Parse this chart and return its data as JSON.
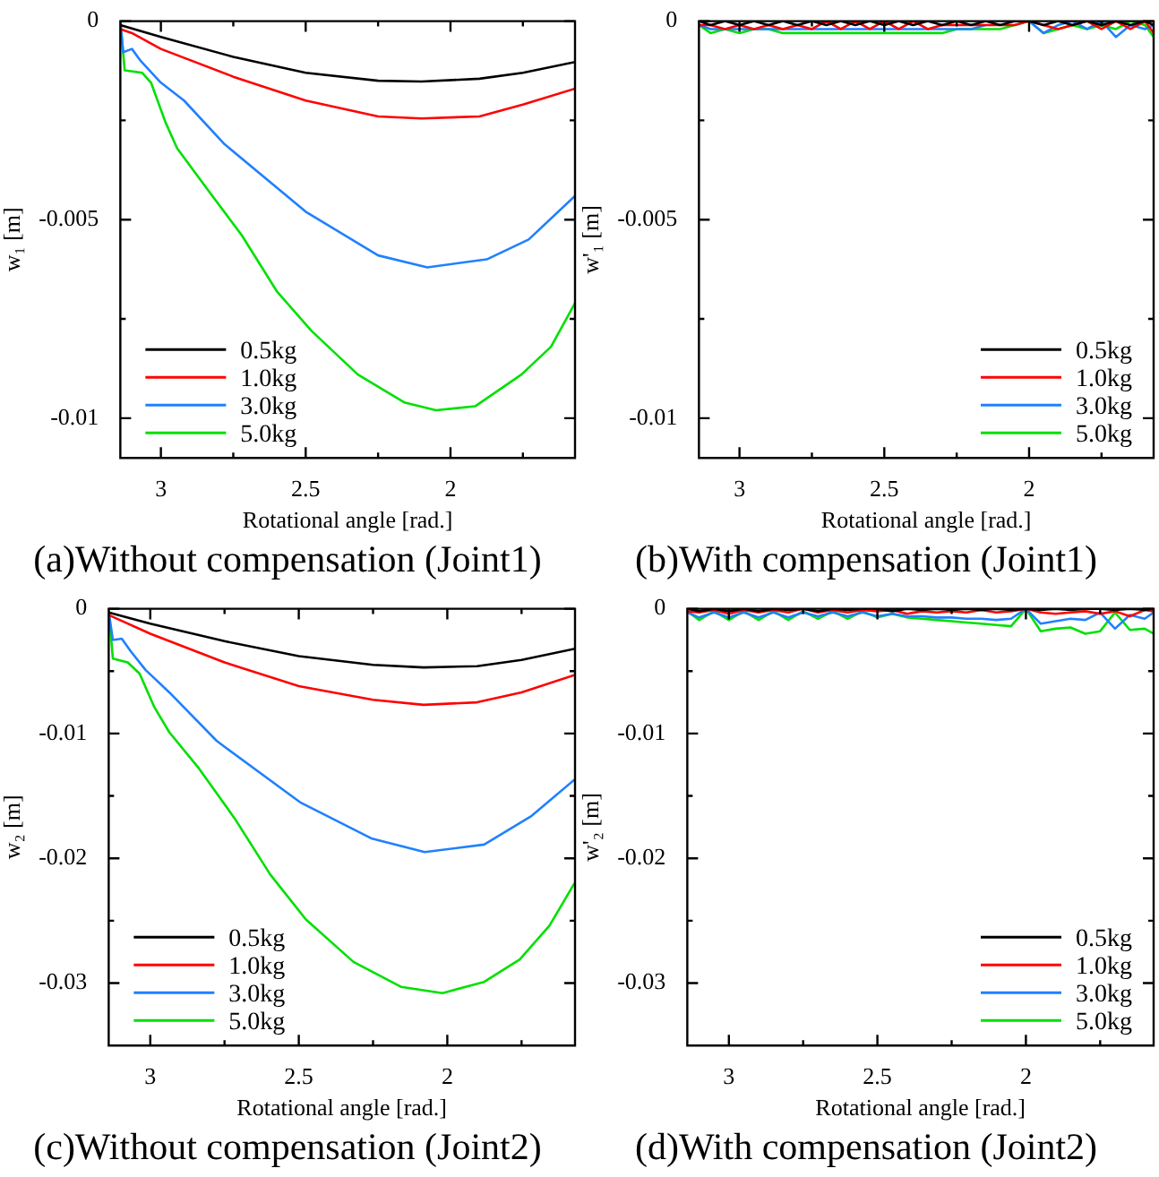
{
  "chart_data": [
    {
      "type": "line",
      "title": "(a)Without compensation (Joint1)",
      "xlabel": "Rotational angle [rad.]",
      "ylabel": "w₁ [m]",
      "xlim": [
        3.14,
        1.57
      ],
      "ylim": [
        -0.011,
        0
      ],
      "xticks": [
        3,
        {
          "value": 2.75,
          "label": null
        },
        2.5,
        {
          "value": 2.25,
          "label": null
        },
        2,
        {
          "value": 1.75,
          "label": null
        }
      ],
      "yticks": [
        0,
        {
          "value": -0.0025,
          "label": null
        },
        -0.005,
        {
          "value": -0.0075,
          "label": null
        },
        -0.01
      ],
      "grid": false,
      "legend": "bottom left",
      "marker": "none",
      "line_style": "solid",
      "series": [
        {
          "name": "0.5kg",
          "color": "#000000",
          "x": [
            3.14,
            3.0,
            2.75,
            2.5,
            2.25,
            2.1,
            1.9,
            1.75,
            1.57
          ],
          "values": [
            -0.0001,
            -0.0004,
            -0.0009,
            -0.0013,
            -0.0015,
            -0.00152,
            -0.00145,
            -0.0013,
            -0.00103
          ]
        },
        {
          "name": "1.0kg",
          "color": "#ff0000",
          "x": [
            3.14,
            3.1,
            3.0,
            2.75,
            2.5,
            2.25,
            2.1,
            1.9,
            1.75,
            1.57
          ],
          "values": [
            -0.0002,
            -0.0003,
            -0.0007,
            -0.0014,
            -0.002,
            -0.0024,
            -0.00245,
            -0.0024,
            -0.0021,
            -0.0017
          ]
        },
        {
          "name": "3.0kg",
          "color": "#2080ff",
          "x": [
            3.14,
            3.13,
            3.1,
            3.07,
            3.0,
            2.92,
            2.78,
            2.5,
            2.25,
            2.08,
            1.875,
            1.73,
            1.57
          ],
          "values": [
            0,
            -0.00078,
            -0.0007,
            -0.001,
            -0.00155,
            -0.002,
            -0.0031,
            -0.0048,
            -0.0059,
            -0.0062,
            -0.006,
            -0.0055,
            -0.0044
          ]
        },
        {
          "name": "5.0kg",
          "color": "#00e000",
          "x": [
            3.14,
            3.125,
            3.065,
            3.034,
            2.984,
            2.944,
            2.843,
            2.72,
            2.6,
            2.48,
            2.32,
            2.16,
            2.05,
            1.915,
            1.755,
            1.653,
            1.57
          ],
          "values": [
            0,
            -0.00124,
            -0.0013,
            -0.00155,
            -0.00255,
            -0.0032,
            -0.0042,
            -0.0054,
            -0.0068,
            -0.0078,
            -0.0089,
            -0.0096,
            -0.0098,
            -0.0097,
            -0.0089,
            -0.0082,
            -0.0071
          ]
        }
      ]
    },
    {
      "type": "line",
      "title": "(b)With compensation (Joint1)",
      "xlabel": "Rotational angle [rad.]",
      "ylabel": "w'₁ [m]",
      "xlim": [
        3.14,
        1.57
      ],
      "ylim": [
        -0.011,
        0
      ],
      "xticks": [
        3,
        {
          "value": 2.75,
          "label": null
        },
        2.5,
        {
          "value": 2.25,
          "label": null
        },
        2,
        {
          "value": 1.75,
          "label": null
        }
      ],
      "yticks": [
        0,
        {
          "value": -0.0025,
          "label": null
        },
        -0.005,
        {
          "value": -0.0075,
          "label": null
        },
        -0.01
      ],
      "grid": false,
      "legend": "bottom right",
      "marker": "none",
      "line_style": "solid",
      "x": [
        3.14,
        3.1,
        3.05,
        3.0,
        2.95,
        2.9,
        2.85,
        2.8,
        2.75,
        2.7,
        2.65,
        2.6,
        2.55,
        2.5,
        2.45,
        2.4,
        2.35,
        2.3,
        2.25,
        2.2,
        2.15,
        2.1,
        2.05,
        2.0,
        1.95,
        1.9,
        1.85,
        1.8,
        1.75,
        1.7,
        1.65,
        1.6,
        1.57
      ],
      "series": [
        {
          "name": "0.5kg",
          "color": "#000000",
          "values": [
            0,
            -0.0001,
            0,
            -0.0001,
            0,
            -0.0001,
            0,
            -0.0001,
            0,
            -0.0001,
            0,
            -0.0001,
            0,
            -0.0001,
            0,
            -0.0001,
            0,
            -0.0001,
            0,
            -0.0001,
            0,
            -0.0001,
            0,
            0,
            -0.0001,
            0,
            -0.0001,
            0,
            -0.0001,
            0,
            -0.0001,
            0,
            -0.0001
          ]
        },
        {
          "name": "1.0kg",
          "color": "#ff0000",
          "values": [
            -0.0001,
            -0.0001,
            -0.0002,
            -0.0001,
            -0.0002,
            -0.0001,
            -0.0002,
            -0.0001,
            -0.0002,
            0,
            -0.0002,
            0,
            -0.0002,
            0,
            -0.0002,
            0,
            -0.0002,
            -0.0001,
            -0.0001,
            -0.0001,
            -0.0001,
            -0.0001,
            -0.0001,
            0,
            -0.0001,
            -0.0002,
            -0.0001,
            0,
            -0.0002,
            0,
            -0.0002,
            0,
            -0.0003
          ]
        },
        {
          "name": "3.0kg",
          "color": "#2080ff",
          "values": [
            -0.0001,
            -0.0002,
            -0.0002,
            -0.0002,
            -0.0002,
            -0.0002,
            -0.0002,
            -0.0002,
            -0.0002,
            -0.0002,
            -0.0002,
            -0.0002,
            -0.0002,
            -0.0002,
            -0.0002,
            -0.0002,
            -0.0002,
            -0.0002,
            -0.0002,
            -0.0002,
            -0.0001,
            null,
            null,
            0,
            -0.0003,
            -0.0001,
            0,
            -0.0002,
            0,
            -0.0004,
            -0.0001,
            -0.0002,
            -0.0001
          ]
        },
        {
          "name": "5.0kg",
          "color": "#00e000",
          "values": [
            -0.0001,
            -0.0003,
            -0.0002,
            -0.0003,
            -0.0002,
            -0.0002,
            -0.0003,
            -0.0003,
            -0.0003,
            -0.0003,
            -0.0003,
            -0.0003,
            -0.0003,
            -0.0003,
            -0.0003,
            -0.0003,
            -0.0003,
            -0.0003,
            -0.0002,
            -0.0002,
            -0.0002,
            -0.0002,
            -0.0001,
            0,
            -0.0003,
            -0.0002,
            -0.0001,
            -0.0002,
            -0.0001,
            -0.0002,
            0,
            -0.0001,
            -0.0004
          ]
        }
      ]
    },
    {
      "type": "line",
      "title": "(c)Without compensation (Joint2)",
      "xlabel": "Rotational angle [rad.]",
      "ylabel": "w₂ [m]",
      "xlim": [
        3.14,
        1.57
      ],
      "ylim": [
        -0.035,
        0
      ],
      "xticks": [
        3,
        {
          "value": 2.75,
          "label": null
        },
        2.5,
        {
          "value": 2.25,
          "label": null
        },
        2,
        {
          "value": 1.75,
          "label": null
        }
      ],
      "yticks": [
        0,
        {
          "value": -0.005,
          "label": null
        },
        -0.01,
        {
          "value": -0.015,
          "label": null
        },
        -0.02,
        {
          "value": -0.025,
          "label": null
        },
        -0.03
      ],
      "grid": false,
      "legend": "bottom left",
      "marker": "none",
      "line_style": "solid",
      "series": [
        {
          "name": "0.5kg",
          "color": "#000000",
          "x": [
            3.14,
            3.0,
            2.75,
            2.5,
            2.25,
            2.08,
            1.9,
            1.75,
            1.57
          ],
          "values": [
            -0.0003,
            -0.0012,
            -0.0026,
            -0.0038,
            -0.0045,
            -0.0047,
            -0.0046,
            -0.0041,
            -0.0032
          ]
        },
        {
          "name": "1.0kg",
          "color": "#ff0000",
          "x": [
            3.14,
            3.0,
            2.75,
            2.5,
            2.25,
            2.08,
            1.9,
            1.75,
            1.57
          ],
          "values": [
            -0.0005,
            -0.002,
            -0.0043,
            -0.0062,
            -0.0073,
            -0.0077,
            -0.0075,
            -0.0067,
            -0.0053
          ]
        },
        {
          "name": "3.0kg",
          "color": "#2080ff",
          "x": [
            3.14,
            3.126,
            3.096,
            3.066,
            3.016,
            2.936,
            2.776,
            2.496,
            2.256,
            2.076,
            1.876,
            1.716,
            1.572
          ],
          "values": [
            -0.0002,
            -0.0025,
            -0.0024,
            -0.0034,
            -0.0049,
            -0.0067,
            -0.0106,
            -0.0155,
            -0.0184,
            -0.0195,
            -0.0189,
            -0.0166,
            -0.0137
          ]
        },
        {
          "name": "5.0kg",
          "color": "#00e000",
          "x": [
            3.14,
            3.126,
            3.076,
            3.036,
            2.986,
            2.936,
            2.836,
            2.716,
            2.596,
            2.476,
            2.316,
            2.156,
            2.016,
            1.876,
            1.756,
            1.656,
            1.572
          ],
          "values": [
            0,
            -0.004,
            -0.0043,
            -0.0052,
            -0.0079,
            -0.0099,
            -0.0128,
            -0.0168,
            -0.0213,
            -0.0249,
            -0.0283,
            -0.0303,
            -0.0308,
            -0.0299,
            -0.0281,
            -0.0254,
            -0.022
          ]
        }
      ]
    },
    {
      "type": "line",
      "title": "(d)With compensation (Joint2)",
      "xlabel": "Rotational angle [rad.]",
      "ylabel": "w'₂ [m]",
      "xlim": [
        3.14,
        1.57
      ],
      "ylim": [
        -0.035,
        0
      ],
      "xticks": [
        3,
        {
          "value": 2.75,
          "label": null
        },
        2.5,
        {
          "value": 2.25,
          "label": null
        },
        2,
        {
          "value": 1.75,
          "label": null
        }
      ],
      "yticks": [
        0,
        {
          "value": -0.005,
          "label": null
        },
        -0.01,
        {
          "value": -0.015,
          "label": null
        },
        -0.02,
        {
          "value": -0.025,
          "label": null
        },
        -0.03
      ],
      "grid": false,
      "legend": "bottom right",
      "marker": "none",
      "line_style": "solid",
      "x": [
        3.14,
        3.1,
        3.05,
        3.0,
        2.95,
        2.9,
        2.85,
        2.8,
        2.75,
        2.7,
        2.65,
        2.6,
        2.55,
        2.5,
        2.45,
        2.4,
        2.35,
        2.3,
        2.25,
        2.2,
        2.15,
        2.1,
        2.05,
        2.0,
        1.95,
        1.9,
        1.85,
        1.8,
        1.75,
        1.7,
        1.65,
        1.6,
        1.57
      ],
      "series": [
        {
          "name": "0.5kg",
          "color": "#000000",
          "values": [
            0,
            -0.0002,
            0,
            -0.0002,
            0,
            -0.0002,
            0,
            -0.0001,
            0,
            -0.0002,
            0,
            -0.0001,
            0,
            0,
            -0.0002,
            0,
            -0.0001,
            0,
            -0.0001,
            0,
            -0.0001,
            0,
            -0.0001,
            0,
            -0.0001,
            0,
            -0.0001,
            0,
            0,
            -0.0001,
            0,
            -0.0001,
            0
          ]
        },
        {
          "name": "1.0kg",
          "color": "#ff0000",
          "values": [
            -0.0002,
            -0.0003,
            -0.0001,
            -0.0004,
            -0.0001,
            -0.0003,
            -0.0001,
            -0.0003,
            0,
            -0.0003,
            -0.0001,
            -0.0003,
            -0.0001,
            -0.0002,
            -0.0001,
            -0.0004,
            -0.0002,
            -0.0003,
            -0.0002,
            -0.0003,
            -0.0001,
            -0.0003,
            -0.0002,
            0,
            -0.0003,
            -0.0004,
            -0.0003,
            -0.0002,
            -0.0004,
            -0.0002,
            -0.0006,
            -0.0001,
            -0.0002
          ]
        },
        {
          "name": "3.0kg",
          "color": "#2080ff",
          "values": [
            -0.0003,
            -0.0007,
            -0.0003,
            -0.0007,
            -0.0003,
            -0.0007,
            -0.0003,
            -0.0007,
            -0.0003,
            -0.0006,
            -0.0003,
            -0.0006,
            -0.0003,
            -0.0006,
            -0.0004,
            -0.0006,
            -0.0006,
            -0.0007,
            -0.0007,
            -0.0008,
            -0.0008,
            -0.0009,
            -0.0008,
            0,
            -0.0012,
            -0.001,
            -0.0008,
            -0.0009,
            -0.0003,
            -0.0016,
            -0.0005,
            -0.0008,
            -0.0003
          ]
        },
        {
          "name": "5.0kg",
          "color": "#00e000",
          "values": [
            -0.0002,
            -0.0009,
            -0.0002,
            -0.0009,
            -0.0002,
            -0.0009,
            -0.0002,
            -0.0009,
            -0.0002,
            -0.0008,
            -0.0002,
            -0.0008,
            -0.0002,
            -0.0007,
            -0.0004,
            -0.0007,
            -0.0008,
            -0.0009,
            -0.001,
            -0.0011,
            -0.0012,
            -0.0013,
            -0.0014,
            0,
            -0.0018,
            -0.0016,
            -0.0015,
            -0.002,
            -0.0018,
            -0.0003,
            -0.0017,
            -0.0016,
            -0.002
          ]
        }
      ]
    }
  ]
}
